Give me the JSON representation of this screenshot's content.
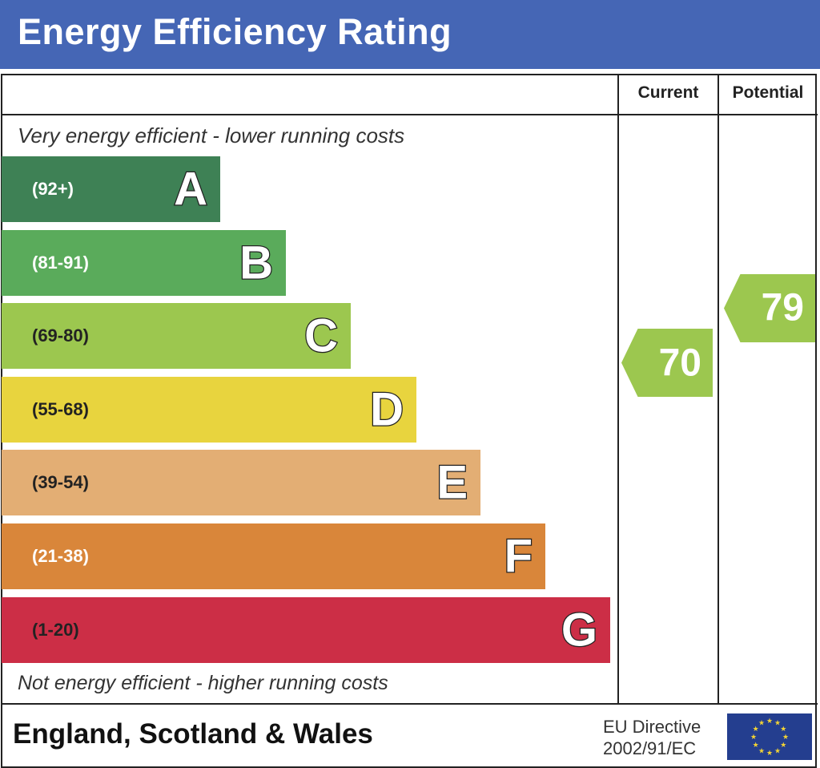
{
  "title": "Energy Efficiency Rating",
  "columns": {
    "current": "Current",
    "potential": "Potential"
  },
  "top_caption": "Very energy efficient - lower running costs",
  "bottom_caption": "Not energy efficient - higher running costs",
  "footer": {
    "region": "England, Scotland & Wales",
    "directive_line1": "EU Directive",
    "directive_line2": "2002/91/EC",
    "flag": "eu-flag-icon"
  },
  "chart_data": {
    "type": "bar",
    "title": "Energy Efficiency Rating",
    "categories": [
      "A",
      "B",
      "C",
      "D",
      "E",
      "F",
      "G"
    ],
    "bands": [
      {
        "letter": "A",
        "range": "(92+)",
        "color": "#3e8155"
      },
      {
        "letter": "B",
        "range": "(81-91)",
        "color": "#5aab5b"
      },
      {
        "letter": "C",
        "range": "(69-80)",
        "color": "#9cc74f"
      },
      {
        "letter": "D",
        "range": "(55-68)",
        "color": "#e8d43e"
      },
      {
        "letter": "E",
        "range": "(39-54)",
        "color": "#e3ae74"
      },
      {
        "letter": "F",
        "range": "(21-38)",
        "color": "#d9863a"
      },
      {
        "letter": "G",
        "range": "(1-20)",
        "color": "#cc2e46"
      }
    ],
    "current": {
      "value": 70,
      "band": "C",
      "color": "#9cc74f"
    },
    "potential": {
      "value": 79,
      "band": "C",
      "color": "#9cc74f"
    }
  }
}
